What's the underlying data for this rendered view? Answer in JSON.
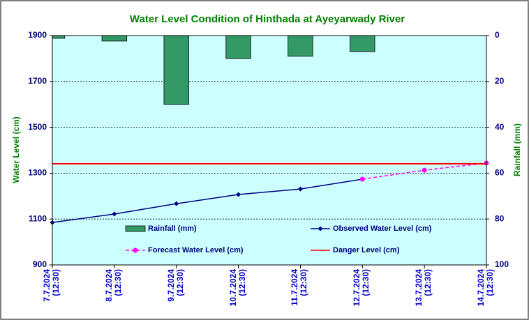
{
  "chart_data": {
    "type": "combo",
    "title": "Water Level Condition of Hinthada at Ayeyarwady River",
    "ylabel": "Water Level (cm)",
    "y2label": "Rainfall (mm)",
    "categories": [
      "7.7.2024\n(12:30)",
      "8.7.2024\n(12:30)",
      "9.7.2024\n(12:30)",
      "10.7.2024\n(12:30)",
      "11.7.2024\n(12:30)",
      "12.7.2024\n(12:30)",
      "13.7.2024\n(12:30)",
      "14.7.2024\n(12:30)"
    ],
    "series": [
      {
        "name": "Rainfall (mm)",
        "type": "bar",
        "axis": "y2",
        "color": "#339966",
        "values": [
          1.2,
          2.4,
          30,
          10,
          9,
          7,
          null,
          null
        ]
      },
      {
        "name": "Observed Water Level (cm)",
        "type": "line",
        "color": "#000080",
        "marker": "diamond",
        "values": [
          1085,
          1122,
          1167,
          1207,
          1231,
          1274,
          null,
          null
        ]
      },
      {
        "name": "Forecast Water Level (cm)",
        "type": "line",
        "color": "#ff00ff",
        "marker": "circle",
        "dashed": true,
        "values": [
          null,
          null,
          null,
          null,
          null,
          1274,
          1313,
          1344
        ]
      },
      {
        "name": "Danger Level (cm)",
        "type": "hline",
        "color": "#ff0000",
        "value": 1341
      }
    ],
    "ylim": [
      900,
      1900
    ],
    "yticks": [
      900,
      1100,
      1300,
      1500,
      1700,
      1900
    ],
    "y2lim": [
      0,
      100
    ],
    "y2ticks": [
      0,
      20,
      40,
      60,
      80,
      100
    ],
    "y2_inverted": true,
    "grid": true
  }
}
